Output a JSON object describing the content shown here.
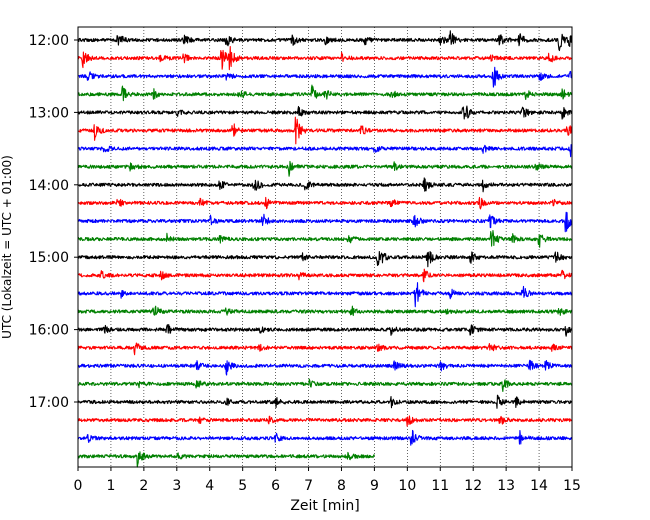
{
  "chart_data": {
    "type": "line",
    "title": "",
    "xlabel": "Zeit  [min]",
    "ylabel": "UTC (Lokalzeit = UTC + 01:00)",
    "xlim": [
      0,
      15
    ],
    "x_ticks": [
      "0",
      "1",
      "2",
      "3",
      "4",
      "5",
      "6",
      "7",
      "8",
      "9",
      "10",
      "11",
      "12",
      "13",
      "14",
      "15"
    ],
    "y_ticks": [
      "12:00",
      "13:00",
      "14:00",
      "15:00",
      "16:00",
      "17:00"
    ],
    "grid": "vertical dotted lines at each minute",
    "colors": [
      "#000000",
      "#ff0000",
      "#0000ff",
      "#008000"
    ],
    "traces": [
      {
        "start": "12:00",
        "color": "#000000",
        "end_minute": 15
      },
      {
        "start": "12:15",
        "color": "#ff0000",
        "end_minute": 15
      },
      {
        "start": "12:30",
        "color": "#0000ff",
        "end_minute": 15
      },
      {
        "start": "12:45",
        "color": "#008000",
        "end_minute": 15
      },
      {
        "start": "13:00",
        "color": "#000000",
        "end_minute": 15
      },
      {
        "start": "13:15",
        "color": "#ff0000",
        "end_minute": 15
      },
      {
        "start": "13:30",
        "color": "#0000ff",
        "end_minute": 15
      },
      {
        "start": "13:45",
        "color": "#008000",
        "end_minute": 15
      },
      {
        "start": "14:00",
        "color": "#000000",
        "end_minute": 15
      },
      {
        "start": "14:15",
        "color": "#ff0000",
        "end_minute": 15
      },
      {
        "start": "14:30",
        "color": "#0000ff",
        "end_minute": 15
      },
      {
        "start": "14:45",
        "color": "#008000",
        "end_minute": 15
      },
      {
        "start": "15:00",
        "color": "#000000",
        "end_minute": 15
      },
      {
        "start": "15:15",
        "color": "#ff0000",
        "end_minute": 15
      },
      {
        "start": "15:30",
        "color": "#0000ff",
        "end_minute": 15
      },
      {
        "start": "15:45",
        "color": "#008000",
        "end_minute": 15
      },
      {
        "start": "16:00",
        "color": "#000000",
        "end_minute": 15
      },
      {
        "start": "16:15",
        "color": "#ff0000",
        "end_minute": 15
      },
      {
        "start": "16:30",
        "color": "#0000ff",
        "end_minute": 15
      },
      {
        "start": "16:45",
        "color": "#008000",
        "end_minute": 15
      },
      {
        "start": "17:00",
        "color": "#000000",
        "end_minute": 15
      },
      {
        "start": "17:15",
        "color": "#ff0000",
        "end_minute": 15
      },
      {
        "start": "17:30",
        "color": "#0000ff",
        "end_minute": 15
      },
      {
        "start": "17:45",
        "color": "#008000",
        "end_minute": 9
      }
    ],
    "events": [
      [
        [
          1.2,
          1.0
        ],
        [
          3.2,
          0.8
        ],
        [
          4.5,
          0.9
        ],
        [
          6.5,
          0.6
        ],
        [
          7.5,
          0.5
        ],
        [
          8.7,
          0.6
        ],
        [
          11.0,
          0.6
        ],
        [
          11.3,
          1.0
        ],
        [
          12.8,
          1.0
        ],
        [
          13.4,
          0.8
        ],
        [
          14.6,
          1.2
        ],
        [
          14.9,
          0.7
        ]
      ],
      [
        [
          0.15,
          1.0
        ],
        [
          2.5,
          0.5
        ],
        [
          3.2,
          0.5
        ],
        [
          4.35,
          1.5
        ],
        [
          4.6,
          1.3
        ],
        [
          8.0,
          0.5
        ],
        [
          12.5,
          0.5
        ],
        [
          14.3,
          0.6
        ]
      ],
      [
        [
          0.3,
          0.6
        ],
        [
          4.5,
          0.6
        ],
        [
          12.6,
          1.6
        ],
        [
          14.0,
          0.5
        ],
        [
          14.95,
          1.0
        ]
      ],
      [
        [
          1.35,
          0.8
        ],
        [
          2.3,
          0.5
        ],
        [
          4.9,
          0.6
        ],
        [
          7.1,
          0.9
        ],
        [
          7.5,
          0.6
        ],
        [
          9.5,
          0.5
        ],
        [
          13.6,
          0.5
        ],
        [
          14.7,
          0.6
        ]
      ],
      [
        [
          3.0,
          0.5
        ],
        [
          6.7,
          0.6
        ],
        [
          11.7,
          1.6
        ],
        [
          13.5,
          0.7
        ],
        [
          14.7,
          0.6
        ]
      ],
      [
        [
          0.5,
          1.0
        ],
        [
          4.7,
          0.9
        ],
        [
          6.6,
          1.8
        ],
        [
          8.6,
          0.5
        ],
        [
          14.85,
          1.0
        ]
      ],
      [
        [
          0.8,
          0.4
        ],
        [
          9.0,
          0.4
        ],
        [
          12.3,
          0.4
        ],
        [
          14.95,
          0.8
        ]
      ],
      [
        [
          1.6,
          0.6
        ],
        [
          6.4,
          1.0
        ],
        [
          9.6,
          0.6
        ],
        [
          13.9,
          0.4
        ]
      ],
      [
        [
          4.3,
          0.5
        ],
        [
          5.35,
          1.2
        ],
        [
          6.9,
          0.6
        ],
        [
          10.5,
          0.9
        ],
        [
          12.3,
          0.6
        ]
      ],
      [
        [
          1.2,
          0.5
        ],
        [
          3.7,
          0.4
        ],
        [
          5.7,
          0.6
        ],
        [
          9.5,
          0.5
        ],
        [
          12.2,
          0.6
        ],
        [
          14.4,
          0.4
        ]
      ],
      [
        [
          4.0,
          0.6
        ],
        [
          5.6,
          0.9
        ],
        [
          10.2,
          0.9
        ],
        [
          12.5,
          0.8
        ],
        [
          14.8,
          1.4
        ]
      ],
      [
        [
          2.7,
          0.6
        ],
        [
          4.3,
          0.4
        ],
        [
          8.2,
          0.5
        ],
        [
          12.55,
          1.3
        ],
        [
          13.2,
          0.5
        ],
        [
          14.0,
          0.9
        ]
      ],
      [
        [
          6.8,
          0.4
        ],
        [
          9.1,
          1.8
        ],
        [
          10.6,
          1.2
        ],
        [
          11.9,
          0.8
        ],
        [
          14.5,
          0.7
        ]
      ],
      [
        [
          0.7,
          0.5
        ],
        [
          2.5,
          0.5
        ],
        [
          6.7,
          0.5
        ],
        [
          10.5,
          0.7
        ],
        [
          14.7,
          0.5
        ]
      ],
      [
        [
          1.3,
          0.4
        ],
        [
          10.25,
          1.8
        ],
        [
          11.3,
          0.5
        ],
        [
          13.5,
          0.8
        ]
      ],
      [
        [
          2.3,
          0.8
        ],
        [
          4.5,
          0.4
        ],
        [
          8.3,
          0.6
        ],
        [
          11.2,
          0.4
        ],
        [
          14.6,
          0.4
        ]
      ],
      [
        [
          0.8,
          0.4
        ],
        [
          2.7,
          0.7
        ],
        [
          5.5,
          0.4
        ],
        [
          9.5,
          0.5
        ],
        [
          11.9,
          0.6
        ],
        [
          14.8,
          0.7
        ]
      ],
      [
        [
          1.7,
          0.9
        ],
        [
          5.5,
          0.4
        ],
        [
          9.1,
          0.5
        ],
        [
          12.5,
          0.5
        ],
        [
          14.4,
          0.4
        ]
      ],
      [
        [
          3.6,
          0.5
        ],
        [
          4.5,
          1.0
        ],
        [
          9.6,
          0.5
        ],
        [
          11.0,
          0.6
        ],
        [
          13.7,
          0.7
        ],
        [
          14.2,
          0.6
        ]
      ],
      [
        [
          1.8,
          0.4
        ],
        [
          3.6,
          0.7
        ],
        [
          7.0,
          0.5
        ],
        [
          12.9,
          0.7
        ]
      ],
      [
        [
          4.5,
          0.4
        ],
        [
          6.0,
          0.5
        ],
        [
          9.5,
          0.6
        ],
        [
          12.7,
          0.9
        ],
        [
          13.3,
          0.5
        ]
      ],
      [
        [
          3.7,
          0.4
        ],
        [
          5.8,
          0.4
        ],
        [
          10.0,
          0.6
        ],
        [
          12.8,
          0.6
        ]
      ],
      [
        [
          0.3,
          0.4
        ],
        [
          6.0,
          0.6
        ],
        [
          10.1,
          1.4
        ],
        [
          13.4,
          0.8
        ]
      ],
      [
        [
          1.8,
          1.1
        ],
        [
          3.0,
          0.4
        ],
        [
          8.2,
          0.4
        ]
      ]
    ]
  }
}
